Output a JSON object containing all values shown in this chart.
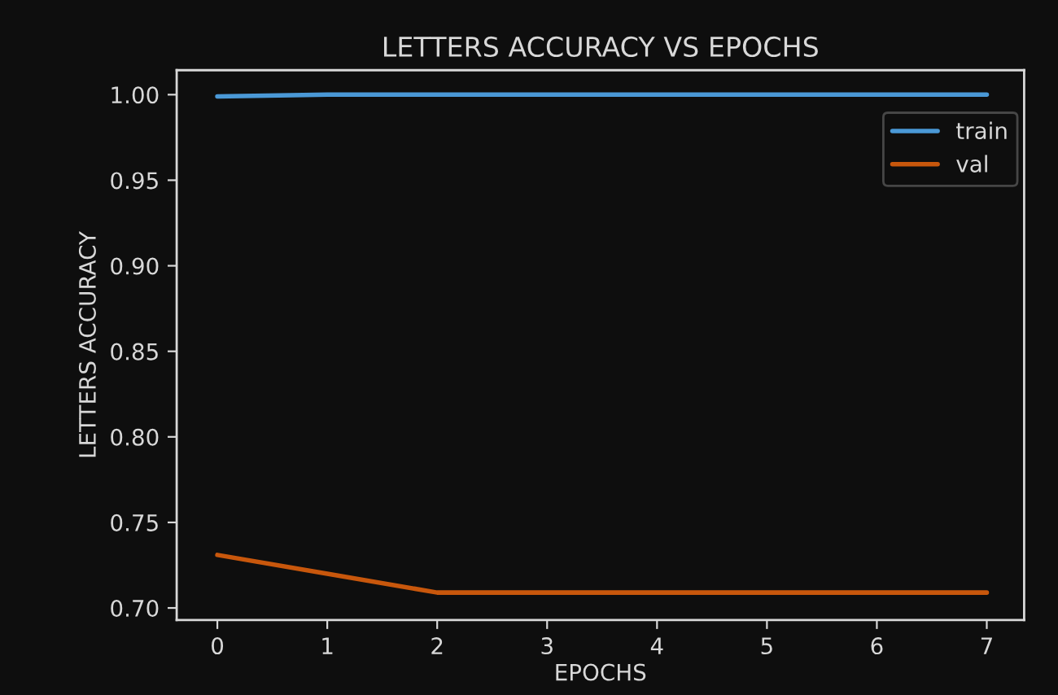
{
  "chart_data": {
    "type": "line",
    "title": "LETTERS ACCURACY VS EPOCHS",
    "xlabel": "EPOCHS",
    "ylabel": "LETTERS ACCURACY",
    "x": [
      0,
      1,
      2,
      3,
      4,
      5,
      6,
      7
    ],
    "series": [
      {
        "name": "train",
        "color": "#4a98d6",
        "values": [
          0.999,
          1.0,
          1.0,
          1.0,
          1.0,
          1.0,
          1.0,
          1.0
        ]
      },
      {
        "name": "val",
        "color": "#c8570c",
        "values": [
          0.731,
          0.72,
          0.709,
          0.709,
          0.709,
          0.709,
          0.709,
          0.709
        ]
      }
    ],
    "xlim": [
      -0.37,
      7.34
    ],
    "ylim": [
      0.693,
      1.0143
    ],
    "xticks": [
      0,
      1,
      2,
      3,
      4,
      5,
      6,
      7
    ],
    "yticks": [
      {
        "value": 0.7,
        "label": "0.70"
      },
      {
        "value": 0.75,
        "label": "0.75"
      },
      {
        "value": 0.8,
        "label": "0.80"
      },
      {
        "value": 0.85,
        "label": "0.85"
      },
      {
        "value": 0.9,
        "label": "0.90"
      },
      {
        "value": 0.95,
        "label": "0.95"
      },
      {
        "value": 1.0,
        "label": "1.00"
      }
    ],
    "legend": "top right",
    "grid": false,
    "marker": "none",
    "line_style": "solid"
  }
}
